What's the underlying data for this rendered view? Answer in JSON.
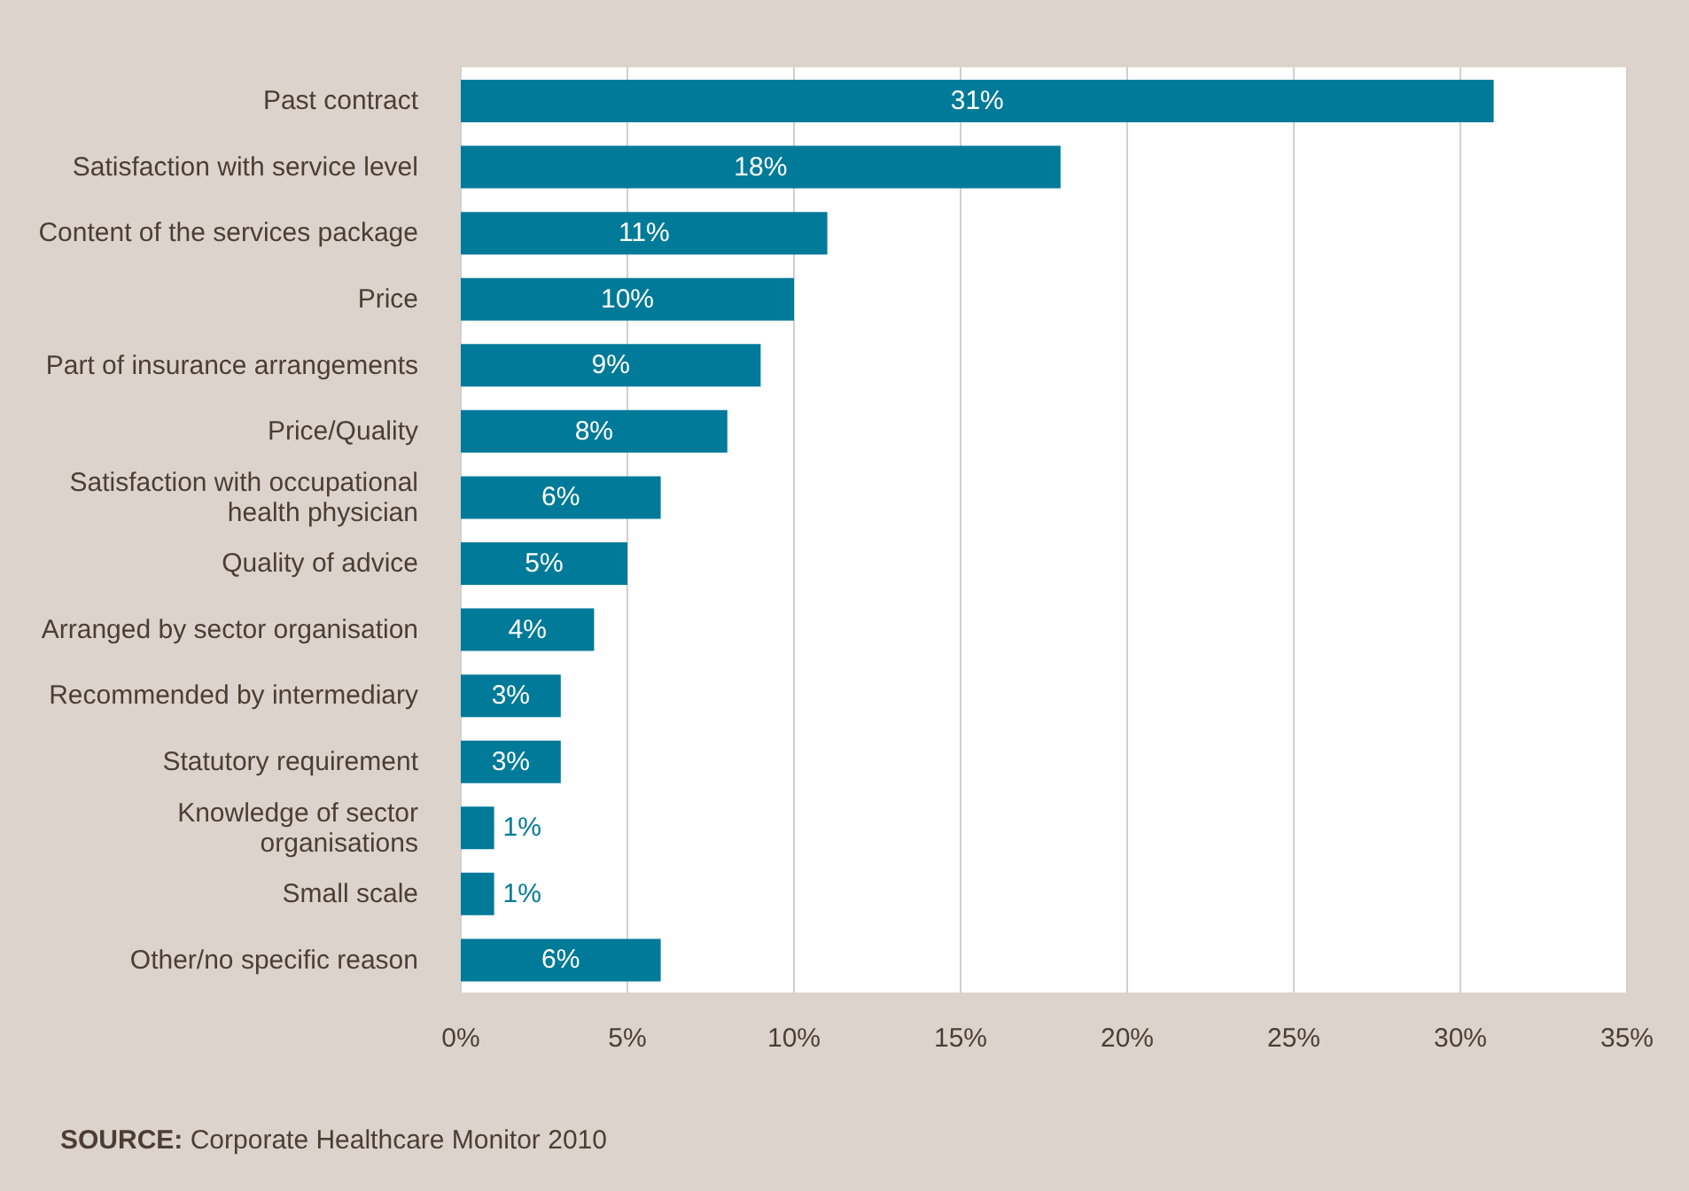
{
  "chart_data": {
    "type": "bar",
    "orientation": "horizontal",
    "categories": [
      "Past contract",
      "Satisfaction with service level",
      "Content of the services package",
      "Price",
      "Part of insurance arrangements",
      "Price/Quality",
      "Satisfaction with occupational health physician",
      "Quality of advice",
      "Arranged by sector organisation",
      "Recommended by intermediary",
      "Statutory requirement",
      "Knowledge of sector organisations",
      "Small scale",
      "Other/no specific reason"
    ],
    "values": [
      31,
      18,
      11,
      10,
      9,
      8,
      6,
      5,
      4,
      3,
      3,
      1,
      1,
      6
    ],
    "value_labels": [
      "31%",
      "18%",
      "11%",
      "10%",
      "9%",
      "8%",
      "6%",
      "5%",
      "4%",
      "3%",
      "3%",
      "1%",
      "1%",
      "6%"
    ],
    "color": "#007a99",
    "xlim": [
      0,
      35
    ],
    "xticks": [
      {
        "value": 0,
        "label": "0%"
      },
      {
        "value": 5,
        "label": "5%"
      },
      {
        "value": 10,
        "label": "10%"
      },
      {
        "value": 15,
        "label": "15%"
      },
      {
        "value": 20,
        "label": "20%"
      },
      {
        "value": 25,
        "label": "25%"
      },
      {
        "value": 30,
        "label": "30%"
      },
      {
        "value": 35,
        "label": "35%"
      }
    ],
    "grid": "x",
    "annotations": [
      "SOURCE: Corporate Healthcare Monitor 2010"
    ]
  }
}
